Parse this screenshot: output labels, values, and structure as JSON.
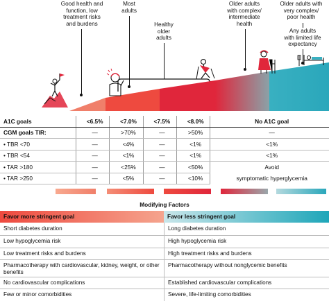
{
  "colors": {
    "salmon": "#f07f6a",
    "red_light": "#ee4a3f",
    "red": "#e0263b",
    "teal": "#39b0c1",
    "gray_light": "#d9d9d9"
  },
  "icons": [
    "mountain-climber-icon",
    "worried-person-icon",
    "person-climbing-icon",
    "walker-elderly-icon",
    "hospital-bed-person-icon"
  ],
  "top_labels": {
    "good_health": [
      "Good health and",
      "function, low",
      "treatment risks",
      "and burdens"
    ],
    "most_adults": [
      "Most",
      "adults"
    ],
    "healthy_older": [
      "Healthy",
      "older",
      "adults"
    ],
    "older_complex": [
      "Older adults",
      "with complex/",
      "intermediate",
      "health"
    ],
    "older_very_complex": [
      "Older adults with",
      "very complex/",
      "poor health"
    ],
    "limited_life": [
      "Any adults",
      "with limited life",
      "expectancy"
    ]
  },
  "table": {
    "rows": [
      {
        "label": "A1C goals",
        "cells": [
          "<6.5%",
          "<7.0%",
          "<7.5%",
          "<8.0%",
          "No A1C goal"
        ],
        "bold": true
      },
      {
        "label": "CGM goals TIR:",
        "cells": [
          "—",
          ">70%",
          "—",
          ">50%",
          "—"
        ],
        "bold": true
      },
      {
        "label": "•  TBR <70",
        "cells": [
          "—",
          "<4%",
          "—",
          "<1%",
          "<1%"
        ],
        "bold": false
      },
      {
        "label": "•  TBR <54",
        "cells": [
          "—",
          "<1%",
          "—",
          "<1%",
          "<1%"
        ],
        "bold": false
      },
      {
        "label": "•  TAR >180",
        "cells": [
          "—",
          "<25%",
          "—",
          "<50%",
          "Avoid"
        ],
        "bold": false
      },
      {
        "label": "•  TAR >250",
        "cells": [
          "—",
          "<5%",
          "—",
          "<10%",
          "symptomatic hyperglycemia"
        ],
        "bold": false
      }
    ]
  },
  "modifying": {
    "title": "Modifying Factors",
    "left_header": "Favor more stringent goal",
    "right_header": "Favor less stringent goal",
    "left": [
      "Short diabetes duration",
      "Low hypoglycemia risk",
      "Low treatment risks and burdens",
      "Pharmacotherapy with cardiovascular, kidney, weight, or other benefits",
      "No cardiovascular complications",
      "Few or minor comorbidities"
    ],
    "right": [
      "Long diabetes duration",
      "High hypoglycemia risk",
      "High treatment risks and burdens",
      "Pharmacotherapy without nonglycemic benefits",
      "",
      "Established cardiovascular complications",
      "Severe, life-limiting comorbidities"
    ]
  }
}
